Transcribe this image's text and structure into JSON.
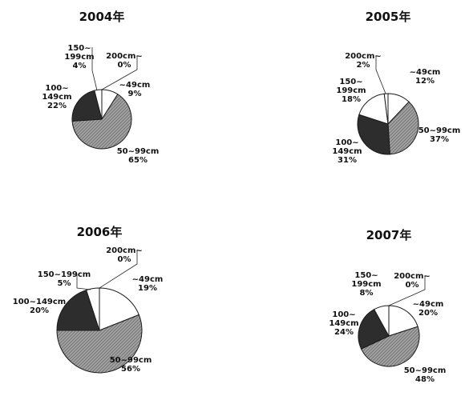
{
  "chart_data": [
    {
      "type": "pie",
      "title": "2004年",
      "slices": [
        {
          "label": [
            "~49cm"
          ],
          "value_text": "9%",
          "value": 9,
          "color": "#ffffff"
        },
        {
          "label": [
            "50~99cm"
          ],
          "value_text": "65%",
          "value": 65,
          "color": "#9c9c9c"
        },
        {
          "label": [
            "100~",
            "149cm"
          ],
          "value_text": "22%",
          "value": 22,
          "color": "#2d2d2d"
        },
        {
          "label": [
            "150~",
            "199cm"
          ],
          "value_text": "4%",
          "value": 4,
          "color": "#ffffff"
        },
        {
          "label": [
            "200cm~"
          ],
          "value_text": "0%",
          "value": 0,
          "color": "#ffffff"
        }
      ]
    },
    {
      "type": "pie",
      "title": "2005年",
      "slices": [
        {
          "label": [
            "~49cm"
          ],
          "value_text": "12%",
          "value": 12,
          "color": "#ffffff"
        },
        {
          "label": [
            "50~99cm"
          ],
          "value_text": "37%",
          "value": 37,
          "color": "#9c9c9c"
        },
        {
          "label": [
            "100~",
            "149cm"
          ],
          "value_text": "31%",
          "value": 31,
          "color": "#2d2d2d"
        },
        {
          "label": [
            "150~",
            "199cm"
          ],
          "value_text": "18%",
          "value": 18,
          "color": "#ffffff"
        },
        {
          "label": [
            "200cm~"
          ],
          "value_text": "2%",
          "value": 2,
          "color": "#ffffff"
        }
      ]
    },
    {
      "type": "pie",
      "title": "2006年",
      "slices": [
        {
          "label": [
            "~49cm"
          ],
          "value_text": "19%",
          "value": 19,
          "color": "#ffffff"
        },
        {
          "label": [
            "50~99cm"
          ],
          "value_text": "56%",
          "value": 56,
          "color": "#9c9c9c"
        },
        {
          "label": [
            "100~149cm"
          ],
          "value_text": "20%",
          "value": 20,
          "color": "#2d2d2d"
        },
        {
          "label": [
            "150~199cm"
          ],
          "value_text": "5%",
          "value": 5,
          "color": "#ffffff"
        },
        {
          "label": [
            "200cm~"
          ],
          "value_text": "0%",
          "value": 0,
          "color": "#ffffff"
        }
      ]
    },
    {
      "type": "pie",
      "title": "2007年",
      "slices": [
        {
          "label": [
            "~49cm"
          ],
          "value_text": "20%",
          "value": 20,
          "color": "#ffffff"
        },
        {
          "label": [
            "50~99cm"
          ],
          "value_text": "48%",
          "value": 48,
          "color": "#9c9c9c"
        },
        {
          "label": [
            "100~",
            "149cm"
          ],
          "value_text": "24%",
          "value": 24,
          "color": "#2d2d2d"
        },
        {
          "label": [
            "150~",
            "199cm"
          ],
          "value_text": "8%",
          "value": 8,
          "color": "#ffffff"
        },
        {
          "label": [
            "200cm~"
          ],
          "value_text": "0%",
          "value": 0,
          "color": "#ffffff"
        }
      ]
    }
  ]
}
